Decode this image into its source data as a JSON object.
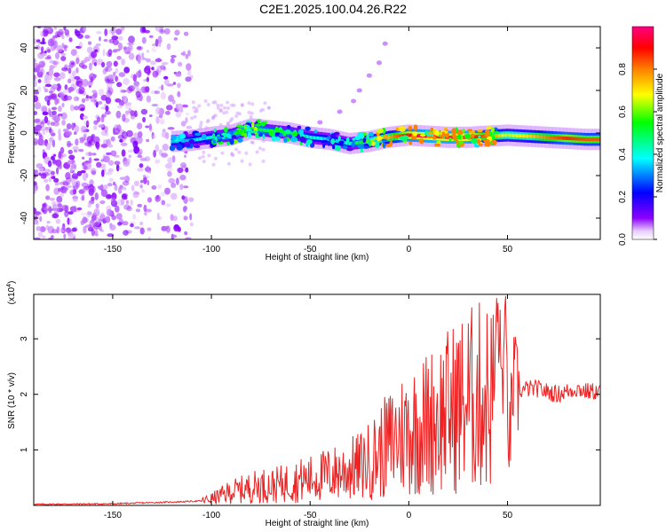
{
  "figure": {
    "title": "C2E1.2025.100.04.26.R22"
  },
  "chart_data": [
    {
      "type": "heatmap",
      "xlabel": "Height of straight line (km)",
      "ylabel": "Frequency (Hz)",
      "xlim": [
        -190,
        97
      ],
      "ylim": [
        -50,
        50
      ],
      "xticks": [
        -150,
        -100,
        -50,
        0,
        50
      ],
      "yticks": [
        -40,
        -20,
        0,
        20,
        40
      ],
      "colorbar": {
        "label": "Normalized spectral amplitude",
        "range": [
          0.0,
          1.0
        ],
        "ticks": [
          0.0,
          0.2,
          0.4,
          0.6,
          0.8
        ],
        "colormap": "rainbow",
        "colors": [
          "#ffffff",
          "#8c00ff",
          "#0000ff",
          "#00ffff",
          "#00ff00",
          "#ffff00",
          "#ff8000",
          "#ff0000",
          "#ff0080"
        ]
      },
      "ridge": {
        "x": [
          -120,
          -110,
          -100,
          -90,
          -80,
          -70,
          -60,
          -50,
          -40,
          -30,
          -20,
          -10,
          0,
          10,
          20,
          30,
          40,
          50,
          60,
          70,
          80,
          90,
          97
        ],
        "freq": [
          -4,
          -3.5,
          -2,
          -1,
          2,
          1,
          0,
          -2,
          -3,
          -5,
          -4,
          -2,
          -1,
          -1.5,
          -2,
          -2,
          -1.5,
          -1,
          -1.5,
          -2,
          -2.5,
          -3,
          -3
        ],
        "amplitude": [
          0.35,
          0.35,
          0.4,
          0.5,
          0.5,
          0.45,
          0.45,
          0.4,
          0.35,
          0.4,
          0.55,
          0.7,
          0.9,
          0.95,
          0.95,
          0.95,
          0.75,
          0.6,
          0.65,
          0.75,
          0.85,
          0.8,
          0.8
        ]
      },
      "harmonic": {
        "x": [
          -45,
          -35,
          -28,
          -25,
          -20,
          -15,
          -12
        ],
        "freq": [
          5,
          10,
          15,
          20,
          27,
          33,
          42
        ]
      },
      "noise_region_x": [
        -190,
        -110
      ]
    },
    {
      "type": "line",
      "xlabel": "Height of straight line (km)",
      "ylabel": "SNR (10 * v/v)",
      "multiplier_label": "(x10",
      "multiplier_exponent": "4",
      "xlim": [
        -190,
        97
      ],
      "ylim": [
        0,
        38000
      ],
      "xticks": [
        -150,
        -100,
        -50,
        0,
        50
      ],
      "yticks": [
        10000,
        20000,
        30000
      ],
      "ytick_labels": [
        "1",
        "2",
        "3"
      ],
      "color": "#ee2222",
      "series": [
        {
          "x": [
            -190,
            -150,
            -120,
            -105,
            -100,
            -95,
            -90,
            -85,
            -80,
            -75,
            -70,
            -65,
            -60,
            -55,
            -50,
            -45,
            -40,
            -35,
            -30,
            -25,
            -20,
            -15,
            -10,
            -5,
            0,
            5,
            10,
            15,
            20,
            25,
            30,
            35,
            40,
            43,
            45,
            47,
            49,
            51,
            53,
            55,
            60,
            65,
            70,
            75,
            80,
            85,
            90,
            97
          ],
          "y": [
            200,
            300,
            600,
            800,
            1200,
            1800,
            2500,
            2800,
            3200,
            3600,
            3500,
            3800,
            4200,
            4500,
            4800,
            5200,
            5600,
            6000,
            6500,
            7000,
            8000,
            9500,
            11000,
            12500,
            13500,
            14000,
            15000,
            16000,
            17000,
            18000,
            19000,
            19500,
            19800,
            20000,
            36000,
            22000,
            30000,
            10000,
            23000,
            20500,
            21000,
            21000,
            20500,
            20000,
            20500,
            21000,
            20500,
            20500
          ]
        }
      ]
    }
  ]
}
